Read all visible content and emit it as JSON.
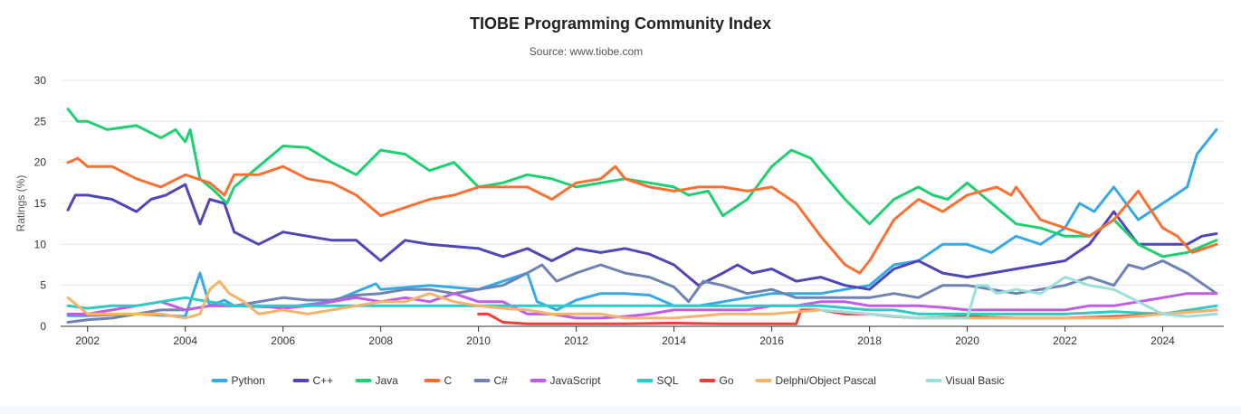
{
  "chart_data": {
    "type": "line",
    "title": "TIOBE Programming Community Index",
    "subtitle": "Source: www.tiobe.com",
    "ylabel": "Ratings (%)",
    "xlabel": "",
    "xlim": [
      2001.45,
      2025.25
    ],
    "ylim": [
      0,
      30
    ],
    "yticks": [
      0,
      5,
      10,
      15,
      20,
      25,
      30
    ],
    "xticks": [
      2002,
      2004,
      2006,
      2008,
      2010,
      2012,
      2014,
      2016,
      2018,
      2020,
      2022,
      2024
    ],
    "grid": "horizontal",
    "legend_position": "bottom",
    "series": [
      {
        "name": "Python",
        "color": "#36a9e9",
        "x": [
          2001.6,
          2002,
          2003,
          2004,
          2004.3,
          2004.5,
          2004.8,
          2005,
          2006,
          2007,
          2007.9,
          2008,
          2009,
          2010,
          2011,
          2011.2,
          2011.6,
          2012,
          2012.5,
          2013,
          2013.5,
          2014,
          2014.5,
          2015,
          2016,
          2017,
          2017.5,
          2018,
          2018.5,
          2019,
          2019.5,
          2020,
          2020.5,
          2021,
          2021.5,
          2022,
          2022.3,
          2022.6,
          2023,
          2023.5,
          2024,
          2024.5,
          2024.7,
          2025.1
        ],
        "y": [
          1.3,
          1.3,
          1.5,
          1.2,
          6.5,
          2.5,
          3.2,
          2.5,
          2.3,
          3,
          5.2,
          4.5,
          5,
          4.5,
          6.5,
          3,
          2,
          3.2,
          4,
          4,
          3.8,
          2.5,
          2.5,
          3,
          4,
          4,
          4.5,
          5,
          7.5,
          8,
          10,
          10,
          9,
          11,
          10,
          12,
          15,
          14,
          17,
          13,
          15,
          17,
          21,
          24
        ]
      },
      {
        "name": "C++",
        "color": "#5046b8",
        "x": [
          2001.6,
          2001.75,
          2002,
          2002.5,
          2003,
          2003.3,
          2003.6,
          2004,
          2004.3,
          2004.5,
          2004.8,
          2005,
          2005.5,
          2006,
          2007,
          2007.5,
          2008,
          2008.5,
          2009,
          2010,
          2010.5,
          2011,
          2011.5,
          2012,
          2012.5,
          2013,
          2013.5,
          2014,
          2014.5,
          2015,
          2015.3,
          2015.6,
          2016,
          2016.5,
          2017,
          2017.5,
          2018,
          2018.5,
          2019,
          2019.5,
          2020,
          2020.5,
          2021,
          2021.5,
          2022,
          2022.5,
          2023,
          2023.5,
          2024,
          2024.5,
          2024.8,
          2025.1
        ],
        "y": [
          14.2,
          16,
          16,
          15.5,
          14,
          15.5,
          16,
          17.3,
          12.5,
          15.5,
          15,
          11.5,
          10,
          11.5,
          10.5,
          10.5,
          8,
          10.5,
          10,
          9.5,
          8.5,
          9.5,
          8,
          9.5,
          9,
          9.5,
          8.8,
          7.5,
          5,
          6.5,
          7.5,
          6.5,
          7,
          5.5,
          6,
          5,
          4.5,
          7,
          8,
          6.5,
          6,
          6.5,
          7,
          7.5,
          8,
          10,
          14,
          10,
          10,
          10,
          11,
          11.3
        ]
      },
      {
        "name": "Java",
        "color": "#1ed070",
        "x": [
          2001.6,
          2001.8,
          2002,
          2002.4,
          2003,
          2003.5,
          2003.8,
          2004,
          2004.1,
          2004.3,
          2004.6,
          2004.85,
          2005,
          2005.5,
          2006,
          2006.5,
          2007,
          2007.5,
          2008,
          2008.5,
          2009,
          2009.5,
          2010,
          2010.5,
          2011,
          2011.5,
          2012,
          2012.5,
          2013,
          2013.5,
          2014,
          2014.3,
          2014.7,
          2015,
          2015.5,
          2016,
          2016.4,
          2016.8,
          2017,
          2017.5,
          2018,
          2018.5,
          2019,
          2019.3,
          2019.6,
          2020,
          2020.5,
          2021,
          2021.5,
          2022,
          2022.5,
          2023,
          2023.5,
          2024,
          2024.5,
          2025.1
        ],
        "y": [
          26.5,
          25,
          25,
          24,
          24.5,
          23,
          24,
          22.5,
          24,
          18,
          16.5,
          15,
          17,
          19.5,
          22,
          21.8,
          20,
          18.5,
          21.5,
          21,
          19,
          20,
          17,
          17.5,
          18.5,
          18,
          17,
          17.5,
          18,
          17.5,
          17,
          16,
          16.5,
          13.5,
          15.5,
          19.5,
          21.5,
          20.5,
          19,
          15.5,
          12.5,
          15.5,
          17,
          16,
          15.5,
          17.5,
          15,
          12.5,
          12,
          11,
          11,
          13,
          10,
          8.5,
          9,
          10.5
        ]
      },
      {
        "name": "C",
        "color": "#fa7033",
        "x": [
          2001.6,
          2001.8,
          2002,
          2002.5,
          2003,
          2003.5,
          2004,
          2004.5,
          2004.8,
          2005,
          2005.5,
          2006,
          2006.5,
          2007,
          2007.5,
          2008,
          2008.5,
          2009,
          2009.5,
          2010,
          2010.5,
          2011,
          2011.5,
          2012,
          2012.5,
          2012.8,
          2013,
          2013.5,
          2014,
          2014.5,
          2015,
          2015.5,
          2016,
          2016.5,
          2017,
          2017.5,
          2017.8,
          2018,
          2018.5,
          2019,
          2019.5,
          2020,
          2020.3,
          2020.6,
          2020.9,
          2021,
          2021.5,
          2022,
          2022.5,
          2023,
          2023.5,
          2024,
          2024.3,
          2024.6,
          2025.1
        ],
        "y": [
          20,
          20.5,
          19.5,
          19.5,
          18,
          17,
          18.5,
          17.5,
          16,
          18.5,
          18.5,
          19.5,
          18,
          17.5,
          16,
          13.5,
          14.5,
          15.5,
          16,
          17,
          17,
          17,
          15.5,
          17.5,
          18,
          19.5,
          18,
          17,
          16.5,
          17,
          17,
          16.5,
          17,
          15,
          11,
          7.5,
          6.5,
          8,
          13,
          15.5,
          14,
          16,
          16.5,
          17,
          16,
          17,
          13,
          12,
          11,
          13,
          16.5,
          12,
          11,
          9,
          10
        ]
      },
      {
        "name": "C#",
        "color": "#6e82b3",
        "x": [
          2001.6,
          2002,
          2002.5,
          2003,
          2003.5,
          2004,
          2004.5,
          2005,
          2005.5,
          2006,
          2006.5,
          2007,
          2007.5,
          2008,
          2008.5,
          2009,
          2009.5,
          2010,
          2010.5,
          2011,
          2011.3,
          2011.6,
          2012,
          2012.5,
          2013,
          2013.5,
          2014,
          2014.3,
          2014.6,
          2015,
          2015.5,
          2016,
          2016.5,
          2017,
          2017.5,
          2018,
          2018.5,
          2019,
          2019.5,
          2020,
          2020.5,
          2021,
          2021.5,
          2022,
          2022.5,
          2023,
          2023.3,
          2023.6,
          2024,
          2024.5,
          2025.1
        ],
        "y": [
          0.5,
          0.8,
          1,
          1.5,
          2,
          2,
          2.5,
          2.5,
          3,
          3.5,
          3.2,
          3.2,
          3.8,
          4,
          4.5,
          4.5,
          4,
          4.5,
          5,
          6.5,
          7.5,
          5.5,
          6.5,
          7.5,
          6.5,
          6,
          4.8,
          3,
          5.5,
          5,
          4,
          4.5,
          3.5,
          3.5,
          3.5,
          3.5,
          4,
          3.5,
          5,
          5,
          4.5,
          4,
          4.5,
          5,
          6,
          5,
          7.5,
          7,
          8,
          6.5,
          4
        ]
      },
      {
        "name": "JavaScript",
        "color": "#c05ce8",
        "x": [
          2001.6,
          2002,
          2002.5,
          2003,
          2003.5,
          2004,
          2004.5,
          2005,
          2005.5,
          2006,
          2006.5,
          2007,
          2007.5,
          2008,
          2008.5,
          2009,
          2009.5,
          2010,
          2010.5,
          2011,
          2011.5,
          2012,
          2012.5,
          2013,
          2013.5,
          2014,
          2014.5,
          2015,
          2015.5,
          2016,
          2016.5,
          2017,
          2017.5,
          2018,
          2018.5,
          2019,
          2019.5,
          2020,
          2020.5,
          2021,
          2021.5,
          2022,
          2022.5,
          2023,
          2023.5,
          2024,
          2024.5,
          2025.1
        ],
        "y": [
          1.5,
          1.5,
          2,
          2.5,
          3,
          2,
          2.5,
          2.5,
          2.5,
          2.2,
          2.5,
          3,
          3.5,
          3,
          3.5,
          3,
          4,
          3,
          3,
          1.5,
          1.5,
          1,
          1,
          1.2,
          1.5,
          2,
          2,
          2,
          2,
          2.5,
          2.5,
          3,
          3,
          2.5,
          2.5,
          2.5,
          2.3,
          2,
          2,
          2,
          2,
          2,
          2.5,
          2.5,
          3,
          3.5,
          4,
          4
        ]
      },
      {
        "name": "SQL",
        "color": "#2fc9c6",
        "x": [
          2001.6,
          2002,
          2002.5,
          2003,
          2003.5,
          2004,
          2004.5,
          2005,
          2006,
          2007,
          2008,
          2009,
          2010,
          2011,
          2012,
          2013,
          2014,
          2015,
          2016,
          2017,
          2018,
          2018.5,
          2019,
          2020,
          2021,
          2022,
          2023,
          2024,
          2025.1
        ],
        "y": [
          2.5,
          2.2,
          2.5,
          2.5,
          3,
          3.5,
          3,
          2.5,
          2.5,
          2.5,
          2.5,
          2.5,
          2.5,
          2.5,
          2.5,
          2.5,
          2.5,
          2.5,
          2.5,
          2.5,
          2,
          2,
          1.5,
          1.5,
          1.5,
          1.5,
          1.8,
          1.5,
          2.5
        ]
      },
      {
        "name": "Go",
        "color": "#e8433a",
        "x": [
          2010,
          2010.2,
          2010.5,
          2011,
          2012,
          2013,
          2014,
          2015,
          2016,
          2016.5,
          2016.6,
          2017,
          2017.5,
          2018,
          2018.5,
          2019,
          2020,
          2021,
          2022,
          2023,
          2024,
          2025.1
        ],
        "y": [
          1.5,
          1.5,
          0.5,
          0.3,
          0.3,
          0.3,
          0.4,
          0.3,
          0.3,
          0.3,
          2,
          2,
          1.5,
          1.5,
          1.2,
          1,
          1.2,
          1,
          1,
          1.2,
          1.5,
          2
        ]
      },
      {
        "name": "Delphi/Object Pascal",
        "color": "#f7b36a",
        "x": [
          2001.6,
          2001.8,
          2002,
          2002.5,
          2003,
          2003.5,
          2003.8,
          2004,
          2004.3,
          2004.5,
          2004.7,
          2004.9,
          2005.2,
          2005.5,
          2006,
          2006.5,
          2007,
          2007.5,
          2008,
          2008.5,
          2009,
          2009.5,
          2010,
          2010.5,
          2011,
          2011.5,
          2012,
          2012.5,
          2013,
          2013.5,
          2014,
          2015,
          2016,
          2017,
          2018,
          2019,
          2020,
          2021,
          2022,
          2023,
          2024,
          2025.1
        ],
        "y": [
          3.5,
          2.5,
          1.5,
          1.5,
          1.5,
          1.5,
          1.2,
          1,
          1.5,
          4.5,
          5.5,
          4,
          3,
          1.5,
          2,
          1.5,
          2,
          2.5,
          3,
          3,
          4,
          3,
          2.5,
          2.2,
          2,
          1.5,
          1.5,
          1.5,
          1,
          1,
          1,
          1.5,
          1.5,
          2,
          1.5,
          1,
          1,
          1,
          1,
          1,
          1.5,
          2
        ]
      },
      {
        "name": "Visual Basic",
        "color": "#9ae0da",
        "x": [
          2017,
          2018,
          2019,
          2019.5,
          2020,
          2020.2,
          2020.4,
          2020.6,
          2021,
          2021.5,
          2022,
          2022.5,
          2023,
          2023.5,
          2024,
          2024.5,
          2025.1
        ],
        "y": [
          2,
          1.5,
          1,
          1,
          1,
          5,
          5,
          4,
          4.5,
          4,
          6,
          5,
          4.5,
          3,
          1.5,
          1.2,
          1.5
        ]
      }
    ]
  }
}
